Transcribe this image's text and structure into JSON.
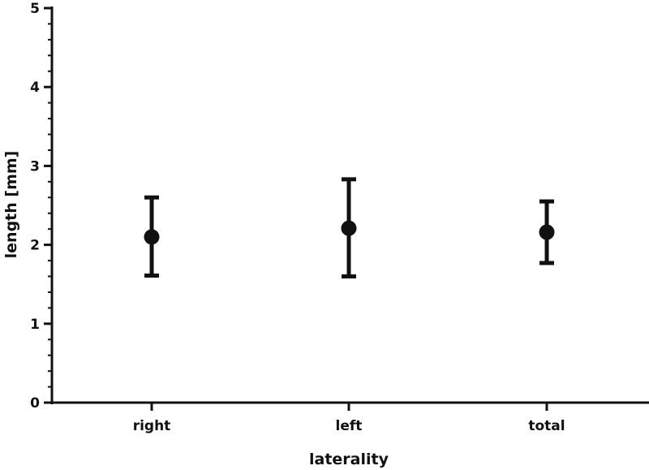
{
  "chart_data": {
    "type": "scatter",
    "title": "",
    "xlabel": "laterality",
    "ylabel": "length [mm]",
    "categories": [
      "right",
      "left",
      "total"
    ],
    "series": [
      {
        "points": [
          {
            "category": "right",
            "mean": 2.1,
            "lower": 1.61,
            "upper": 2.6
          },
          {
            "category": "left",
            "mean": 2.21,
            "lower": 1.6,
            "upper": 2.83
          },
          {
            "category": "total",
            "mean": 2.16,
            "lower": 1.77,
            "upper": 2.55
          }
        ]
      }
    ],
    "ylim": [
      0,
      5
    ],
    "yticks": [
      "0",
      "1",
      "2",
      "3",
      "4",
      "5"
    ],
    "minor_ticks_per_major": 4,
    "grid": false,
    "legend": "none"
  }
}
